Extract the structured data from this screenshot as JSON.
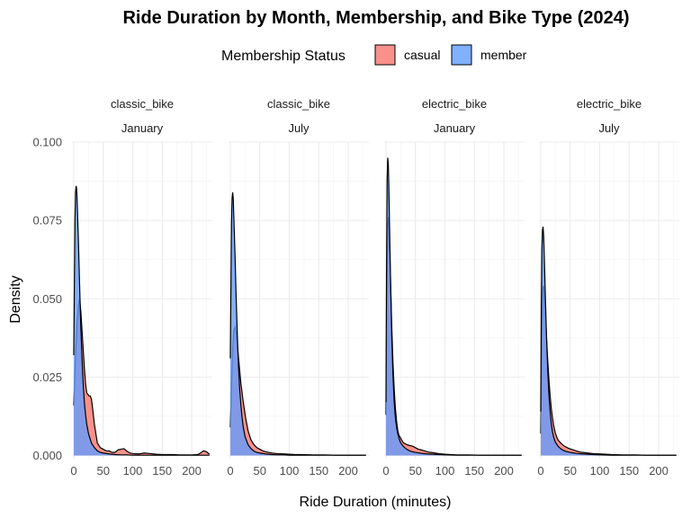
{
  "chart_data": {
    "type": "area",
    "title": "Ride Duration by Month, Membership, and Bike Type (2024)",
    "xlabel": "Ride Duration (minutes)",
    "ylabel": "Density",
    "xlim": [
      -3,
      235
    ],
    "ylim": [
      -0.001,
      0.1
    ],
    "x_ticks": [
      0,
      50,
      100,
      150,
      200
    ],
    "y_ticks": [
      0.0,
      0.025,
      0.05,
      0.075,
      0.1
    ],
    "y_tick_labels": [
      "0.000",
      "0.025",
      "0.050",
      "0.075",
      "0.100"
    ],
    "grid": true,
    "legend": {
      "title": "Membership Status",
      "position": "top",
      "entries": [
        {
          "label": "casual",
          "color": "#F8766D"
        },
        {
          "label": "member",
          "color": "#619CFF"
        }
      ]
    },
    "panels": [
      {
        "bike": "classic_bike",
        "month": "January",
        "series": [
          {
            "name": "casual",
            "x": [
              0,
              2,
              4,
              6,
              8,
              10,
              12,
              14,
              16,
              18,
              20,
              22,
              24,
              26,
              28,
              30,
              32,
              35,
              40,
              45,
              50,
              55,
              60,
              65,
              70,
              75,
              80,
              85,
              90,
              95,
              100,
              110,
              120,
              130,
              140,
              150,
              160,
              170,
              180,
              190,
              200,
              210,
              215,
              220,
              225,
              230
            ],
            "y": [
              0.016,
              0.026,
              0.036,
              0.043,
              0.048,
              0.05,
              0.046,
              0.04,
              0.034,
              0.028,
              0.023,
              0.02,
              0.0195,
              0.019,
              0.019,
              0.018,
              0.015,
              0.01,
              0.004,
              0.0025,
              0.002,
              0.0015,
              0.0015,
              0.001,
              0.001,
              0.0018,
              0.002,
              0.0022,
              0.0014,
              0.0008,
              0.0006,
              0.0005,
              0.0008,
              0.0006,
              0.0004,
              0.0003,
              0.0003,
              0.0003,
              0.0002,
              0.0002,
              0.0002,
              0.0003,
              0.0008,
              0.0015,
              0.0012,
              0.0004
            ]
          },
          {
            "name": "member",
            "x": [
              0,
              2,
              3,
              4,
              5,
              6,
              8,
              10,
              12,
              14,
              16,
              18,
              20,
              22,
              25,
              30,
              35,
              40,
              45,
              50,
              60,
              70,
              80,
              90,
              100,
              120,
              140,
              160,
              180,
              200,
              220,
              230
            ],
            "y": [
              0.032,
              0.075,
              0.084,
              0.086,
              0.085,
              0.08,
              0.068,
              0.054,
              0.041,
              0.031,
              0.023,
              0.017,
              0.013,
              0.01,
              0.007,
              0.004,
              0.0025,
              0.0015,
              0.001,
              0.0008,
              0.0005,
              0.0003,
              0.0002,
              0.0002,
              0.0001,
              0.0001,
              0.0001,
              0.0001,
              0.0001,
              0.0001,
              0.0001,
              0.0001
            ]
          }
        ]
      },
      {
        "bike": "classic_bike",
        "month": "July",
        "series": [
          {
            "name": "casual",
            "x": [
              0,
              2,
              4,
              6,
              8,
              10,
              12,
              14,
              16,
              18,
              20,
              22,
              24,
              26,
              28,
              30,
              32,
              35,
              40,
              45,
              50,
              55,
              60,
              65,
              70,
              80,
              90,
              100,
              110,
              120,
              140,
              160,
              180,
              200,
              220,
              230
            ],
            "y": [
              0.009,
              0.022,
              0.034,
              0.04,
              0.041,
              0.039,
              0.035,
              0.031,
              0.027,
              0.023,
              0.02,
              0.017,
              0.0145,
              0.012,
              0.01,
              0.008,
              0.0068,
              0.005,
              0.0035,
              0.0025,
              0.002,
              0.0015,
              0.0012,
              0.001,
              0.0008,
              0.0006,
              0.0005,
              0.0004,
              0.0003,
              0.0003,
              0.0002,
              0.0002,
              0.0001,
              0.0001,
              0.0001,
              0.0001
            ]
          },
          {
            "name": "member",
            "x": [
              0,
              2,
              3,
              4,
              5,
              6,
              8,
              10,
              12,
              14,
              16,
              18,
              20,
              22,
              25,
              30,
              35,
              40,
              45,
              50,
              60,
              70,
              80,
              90,
              100,
              120,
              140,
              160,
              180,
              200,
              220,
              230
            ],
            "y": [
              0.031,
              0.074,
              0.082,
              0.084,
              0.082,
              0.076,
              0.064,
              0.05,
              0.038,
              0.028,
              0.021,
              0.016,
              0.012,
              0.009,
              0.006,
              0.0035,
              0.0022,
              0.0014,
              0.001,
              0.0008,
              0.0005,
              0.0003,
              0.0002,
              0.0002,
              0.0001,
              0.0001,
              0.0001,
              0.0001,
              0.0001,
              0.0001,
              0.0001,
              0.0001
            ]
          }
        ]
      },
      {
        "bike": "electric_bike",
        "month": "January",
        "series": [
          {
            "name": "casual",
            "x": [
              0,
              1,
              2,
              3,
              4,
              5,
              6,
              8,
              10,
              12,
              14,
              16,
              18,
              20,
              22,
              25,
              28,
              30,
              35,
              40,
              45,
              50,
              55,
              60,
              65,
              70,
              75,
              80,
              90,
              100,
              110,
              120,
              140,
              160,
              180,
              200,
              220,
              230
            ],
            "y": [
              0.013,
              0.04,
              0.062,
              0.073,
              0.076,
              0.074,
              0.068,
              0.054,
              0.04,
              0.029,
              0.021,
              0.015,
              0.011,
              0.008,
              0.0065,
              0.0055,
              0.0045,
              0.004,
              0.0035,
              0.0032,
              0.003,
              0.0025,
              0.002,
              0.0018,
              0.0015,
              0.0012,
              0.001,
              0.0009,
              0.0006,
              0.0004,
              0.0003,
              0.0002,
              0.0002,
              0.0001,
              0.0001,
              0.0001,
              0.0001,
              0.0001
            ]
          },
          {
            "name": "member",
            "x": [
              0,
              1,
              2,
              3,
              4,
              5,
              6,
              8,
              10,
              12,
              14,
              16,
              18,
              20,
              22,
              25,
              30,
              35,
              40,
              45,
              50,
              60,
              70,
              80,
              90,
              100,
              120,
              140,
              160,
              180,
              200,
              220,
              230
            ],
            "y": [
              0.017,
              0.06,
              0.088,
              0.095,
              0.093,
              0.085,
              0.074,
              0.054,
              0.037,
              0.025,
              0.017,
              0.012,
              0.009,
              0.007,
              0.0055,
              0.004,
              0.0028,
              0.002,
              0.0015,
              0.0012,
              0.001,
              0.0007,
              0.0005,
              0.0004,
              0.0003,
              0.0002,
              0.0001,
              0.0001,
              0.0001,
              0.0001,
              0.0001,
              0.0001,
              0.0001
            ]
          }
        ]
      },
      {
        "bike": "electric_bike",
        "month": "July",
        "series": [
          {
            "name": "casual",
            "x": [
              0,
              1,
              2,
              3,
              4,
              5,
              6,
              8,
              10,
              12,
              14,
              16,
              18,
              20,
              22,
              25,
              28,
              30,
              35,
              40,
              45,
              50,
              55,
              60,
              65,
              70,
              80,
              90,
              100,
              110,
              120,
              140,
              160,
              180,
              200,
              220,
              230
            ],
            "y": [
              0.007,
              0.022,
              0.04,
              0.05,
              0.054,
              0.054,
              0.052,
              0.045,
              0.037,
              0.03,
              0.024,
              0.019,
              0.015,
              0.012,
              0.0095,
              0.007,
              0.0055,
              0.0048,
              0.0038,
              0.003,
              0.0025,
              0.0021,
              0.0018,
              0.0015,
              0.0012,
              0.001,
              0.0008,
              0.0006,
              0.0005,
              0.0004,
              0.0003,
              0.0002,
              0.0002,
              0.0001,
              0.0001,
              0.0001,
              0.0001
            ]
          },
          {
            "name": "member",
            "x": [
              0,
              1,
              2,
              3,
              4,
              5,
              6,
              8,
              10,
              12,
              14,
              16,
              18,
              20,
              22,
              25,
              30,
              35,
              40,
              45,
              50,
              60,
              70,
              80,
              90,
              100,
              120,
              140,
              160,
              180,
              200,
              220,
              230
            ],
            "y": [
              0.014,
              0.048,
              0.066,
              0.072,
              0.073,
              0.07,
              0.064,
              0.05,
              0.037,
              0.027,
              0.019,
              0.014,
              0.01,
              0.0075,
              0.0058,
              0.0042,
              0.0028,
              0.002,
              0.0015,
              0.0012,
              0.001,
              0.0007,
              0.0005,
              0.0004,
              0.0003,
              0.0002,
              0.0001,
              0.0001,
              0.0001,
              0.0001,
              0.0001,
              0.0001,
              0.0001
            ]
          }
        ]
      }
    ]
  }
}
